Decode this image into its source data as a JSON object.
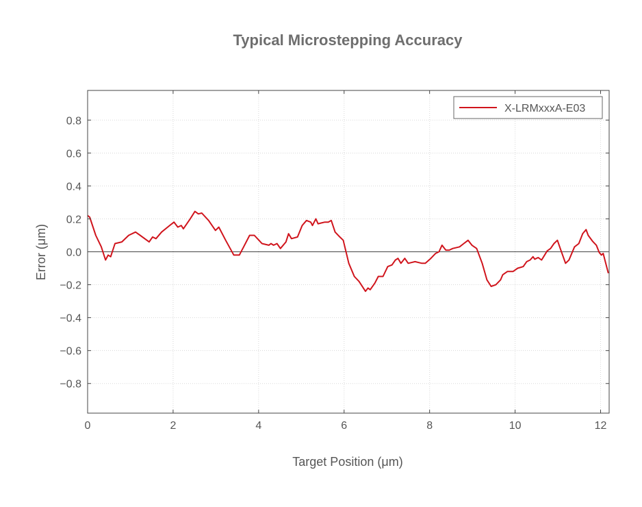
{
  "chart_data": {
    "type": "line",
    "title": "Typical Microstepping Accuracy",
    "xlabel": "Target Position (μm)",
    "ylabel": "Error (μm)",
    "xlim": [
      0,
      12.2
    ],
    "ylim": [
      -0.98,
      0.98
    ],
    "xticks": [
      0,
      2,
      4,
      6,
      8,
      10,
      12
    ],
    "xtick_labels": [
      "0",
      "2",
      "4",
      "6",
      "8",
      "10",
      "12"
    ],
    "yticks": [
      -0.8,
      -0.6,
      -0.4,
      -0.2,
      0.0,
      0.2,
      0.4,
      0.6,
      0.8
    ],
    "ytick_labels": [
      "−0.8",
      "−0.6",
      "−0.4",
      "−0.2",
      "0.0",
      "0.2",
      "0.4",
      "0.6",
      "0.8"
    ],
    "grid": true,
    "zero_line": true,
    "legend_position": "top-right",
    "colors": {
      "series": "#d0141c",
      "title": "#6e6e6e",
      "text": "#555555",
      "axes": "#444444",
      "grid": "#d8d8d8"
    },
    "series": [
      {
        "name": "X-LRMxxxA-E03",
        "x": [
          0,
          0.05,
          0.19,
          0.32,
          0.42,
          0.48,
          0.54,
          0.64,
          0.8,
          0.96,
          1.12,
          1.23,
          1.44,
          1.52,
          1.6,
          1.73,
          1.92,
          2.02,
          2.11,
          2.19,
          2.24,
          2.4,
          2.51,
          2.59,
          2.67,
          2.83,
          2.99,
          3.07,
          3.23,
          3.42,
          3.55,
          3.65,
          3.79,
          3.9,
          4.08,
          4.24,
          4.29,
          4.35,
          4.43,
          4.51,
          4.64,
          4.7,
          4.77,
          4.91,
          5.02,
          5.12,
          5.22,
          5.26,
          5.34,
          5.39,
          5.47,
          5.55,
          5.63,
          5.7,
          5.79,
          5.9,
          5.98,
          6.11,
          6.24,
          6.35,
          6.5,
          6.56,
          6.61,
          6.72,
          6.8,
          6.91,
          7.02,
          7.12,
          7.2,
          7.26,
          7.33,
          7.42,
          7.5,
          7.66,
          7.82,
          7.9,
          8.03,
          8.14,
          8.22,
          8.29,
          8.38,
          8.46,
          8.54,
          8.7,
          8.8,
          8.9,
          8.99,
          9.1,
          9.23,
          9.34,
          9.44,
          9.55,
          9.66,
          9.71,
          9.82,
          9.95,
          10.06,
          10.19,
          10.27,
          10.35,
          10.42,
          10.46,
          10.54,
          10.62,
          10.75,
          10.83,
          10.91,
          10.99,
          11.07,
          11.18,
          11.26,
          11.39,
          11.49,
          11.58,
          11.66,
          11.71,
          11.81,
          11.9,
          11.97,
          12.02,
          12.06,
          12.11,
          12.18
        ],
        "y": [
          0.22,
          0.21,
          0.1,
          0.03,
          -0.05,
          -0.02,
          -0.03,
          0.05,
          0.06,
          0.1,
          0.12,
          0.1,
          0.06,
          0.09,
          0.08,
          0.12,
          0.16,
          0.18,
          0.15,
          0.16,
          0.14,
          0.2,
          0.245,
          0.23,
          0.235,
          0.19,
          0.13,
          0.15,
          0.07,
          -0.02,
          -0.02,
          0.03,
          0.1,
          0.1,
          0.05,
          0.04,
          0.05,
          0.04,
          0.05,
          0.02,
          0.06,
          0.11,
          0.08,
          0.09,
          0.16,
          0.19,
          0.18,
          0.16,
          0.2,
          0.17,
          0.175,
          0.18,
          0.18,
          0.19,
          0.12,
          0.09,
          0.07,
          -0.07,
          -0.15,
          -0.18,
          -0.24,
          -0.22,
          -0.23,
          -0.19,
          -0.15,
          -0.15,
          -0.09,
          -0.08,
          -0.05,
          -0.04,
          -0.07,
          -0.04,
          -0.07,
          -0.06,
          -0.07,
          -0.07,
          -0.04,
          -0.01,
          0.0,
          0.04,
          0.01,
          0.01,
          0.02,
          0.03,
          0.05,
          0.07,
          0.04,
          0.02,
          -0.07,
          -0.17,
          -0.21,
          -0.2,
          -0.17,
          -0.14,
          -0.12,
          -0.12,
          -0.1,
          -0.09,
          -0.06,
          -0.05,
          -0.03,
          -0.045,
          -0.035,
          -0.05,
          0.005,
          0.02,
          0.05,
          0.07,
          0.01,
          -0.07,
          -0.05,
          0.03,
          0.05,
          0.11,
          0.135,
          0.1,
          0.065,
          0.04,
          -0.005,
          -0.02,
          -0.01,
          -0.06,
          -0.13
        ]
      }
    ]
  }
}
